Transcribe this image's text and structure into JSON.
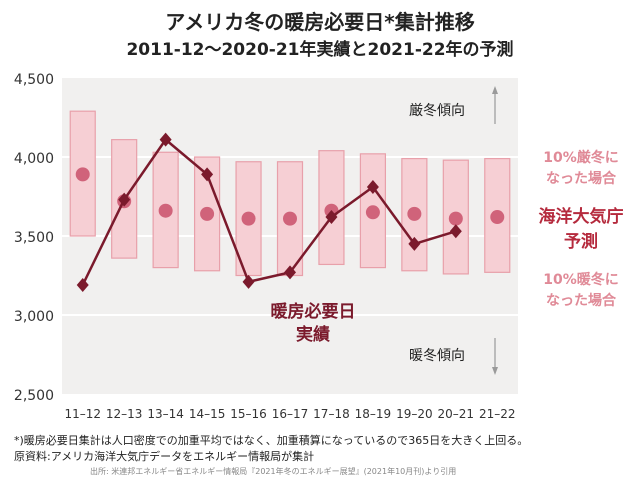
{
  "title": "アメリカ冬の暖房必要日*集計推移",
  "subtitle": "2011-12〜2020-21年実績と2021-22年の予測",
  "chart_data": {
    "type": "line",
    "categories": [
      "11–12",
      "12–13",
      "13–14",
      "14–15",
      "15–16",
      "16–17",
      "17–18",
      "18–19",
      "19–20",
      "20–21",
      "21–22"
    ],
    "ylim": [
      2500,
      4500
    ],
    "yticks": [
      2500,
      3000,
      3500,
      4000,
      4500
    ],
    "ytick_labels": [
      "2,500",
      "3,000",
      "3,500",
      "4,000",
      "4,500"
    ],
    "series": [
      {
        "name": "暖房必要日実績",
        "color": "#7b1a2c",
        "values": [
          3190,
          3730,
          4110,
          3890,
          3210,
          3270,
          3620,
          3810,
          3450,
          3530,
          null
        ]
      }
    ],
    "forecast": {
      "color": "#c8505f",
      "point": [
        3890,
        3720,
        3660,
        3640,
        3610,
        3610,
        3660,
        3650,
        3640,
        3610,
        3620
      ],
      "high": [
        4290,
        4110,
        4030,
        4000,
        3970,
        3970,
        4040,
        4020,
        3990,
        3980,
        3990
      ],
      "low": [
        3500,
        3360,
        3300,
        3280,
        3250,
        3250,
        3320,
        3300,
        3280,
        3260,
        3270
      ]
    },
    "annotations": {
      "actual_label_1": "暖房必要日",
      "actual_label_2": "実績",
      "colder_trend": "厳冬傾向",
      "warmer_trend": "暖冬傾向"
    },
    "grid": "horizontal"
  },
  "side_labels": {
    "cold_case_1": "10%厳冬に",
    "cold_case_2": "なった場合",
    "forecast_1": "海洋大気庁",
    "forecast_2": "予測",
    "warm_case_1": "10%暖冬に",
    "warm_case_2": "なった場合"
  },
  "colors": {
    "band": "#f6cfd4",
    "band_border": "#e8a0aa",
    "forecast_dot": "#d0637a",
    "actual_line": "#7b1a2c",
    "actual_label": "#7b1a2c",
    "forecast_label": "#b52a3d",
    "case_label": "#e08a97",
    "plot_bg": "#f1f0ef"
  },
  "notes": {
    "note1": "*)暖房必要日集計は人口密度での加重平均ではなく、加重積算になっているので365日を大きく上回る。",
    "note2": "原資料:アメリカ海洋大気庁データをエネルギー情報局が集計",
    "source": "出所: 米連邦エネルギー省エネルギー情報局『2021年冬のエネルギー展望』(2021年10月刊)より引用"
  }
}
